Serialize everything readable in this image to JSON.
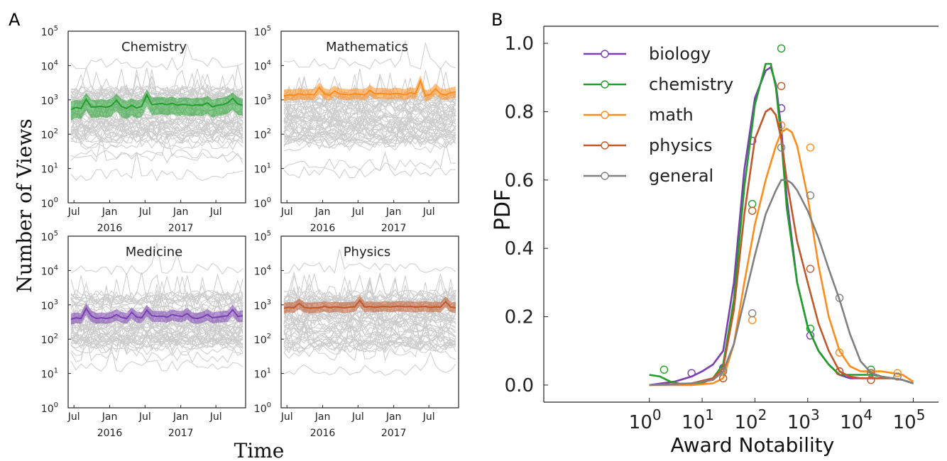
{
  "panel_labels": {
    "a": "A",
    "b": "B"
  },
  "colors": {
    "biology": "#7a3fb0",
    "chemistry": "#1f9e2a",
    "math": "#ff8c1a",
    "physics": "#c0582a",
    "general": "#808080",
    "background_lines": "#cccccc"
  },
  "chart_data": [
    {
      "type": "line",
      "panel": "A",
      "xlabel": "Time",
      "ylabel": "Number of Views",
      "y_scale": "log",
      "ylim": [
        1,
        100000
      ],
      "x_range": [
        "2015-06",
        "2017-12"
      ],
      "y_tick_labels": [
        {
          "base": "10",
          "exp": "0"
        },
        {
          "base": "10",
          "exp": "1"
        },
        {
          "base": "10",
          "exp": "2"
        },
        {
          "base": "10",
          "exp": "3"
        },
        {
          "base": "10",
          "exp": "4"
        },
        {
          "base": "10",
          "exp": "5"
        }
      ],
      "x_tick_labels": [
        {
          "label": "Jul",
          "year": "",
          "date": "2015-07"
        },
        {
          "label": "Jan",
          "year": "2016",
          "date": "2016-01"
        },
        {
          "label": "Jul",
          "year": "",
          "date": "2016-07"
        },
        {
          "label": "Jan",
          "year": "2017",
          "date": "2017-01"
        },
        {
          "label": "Jul",
          "year": "",
          "date": "2017-07"
        }
      ],
      "subplots": [
        {
          "title": "Chemistry",
          "color_key": "chemistry",
          "median": [
            520,
            600,
            560,
            1050,
            620,
            620,
            650,
            600,
            680,
            980,
            640,
            560,
            700,
            580,
            650,
            1400,
            720,
            760,
            780,
            720,
            800,
            700,
            740,
            720,
            680,
            720,
            700,
            820,
            620,
            700,
            720,
            820,
            1100,
            760,
            700
          ],
          "band_low": [
            250,
            300,
            280,
            500,
            300,
            300,
            320,
            300,
            330,
            480,
            310,
            280,
            340,
            290,
            320,
            650,
            350,
            370,
            380,
            350,
            390,
            340,
            360,
            350,
            330,
            350,
            340,
            400,
            300,
            340,
            350,
            400,
            520,
            370,
            340
          ],
          "band_high": [
            900,
            1000,
            950,
            1600,
            1000,
            1000,
            1050,
            980,
            1100,
            1500,
            1050,
            950,
            1100,
            960,
            1050,
            2000,
            1150,
            1200,
            1250,
            1150,
            1250,
            1100,
            1180,
            1150,
            1100,
            1150,
            1120,
            1300,
            1000,
            1120,
            1150,
            1300,
            1650,
            1200,
            1100
          ]
        },
        {
          "title": "Mathematics",
          "color_key": "math",
          "median": [
            1300,
            1400,
            1350,
            1500,
            1400,
            1450,
            1400,
            2300,
            1500,
            1350,
            1800,
            1500,
            1450,
            1400,
            1500,
            1450,
            1400,
            1900,
            1500,
            1550,
            1500,
            1450,
            1550,
            1500,
            1400,
            1600,
            1500,
            3600,
            1300,
            1450,
            2100,
            1500,
            1400,
            1600,
            1700
          ],
          "band_low": [
            900,
            1000,
            950,
            1050,
            980,
            1000,
            980,
            1500,
            1050,
            950,
            1250,
            1050,
            1000,
            980,
            1050,
            1000,
            980,
            1300,
            1050,
            1080,
            1050,
            1000,
            1080,
            1050,
            980,
            1100,
            1050,
            2200,
            900,
            1000,
            1400,
            1050,
            980,
            1100,
            1150
          ],
          "band_high": [
            2000,
            2100,
            2000,
            2200,
            2050,
            2100,
            2050,
            3200,
            2200,
            2000,
            2600,
            2200,
            2100,
            2050,
            2200,
            2100,
            2050,
            2700,
            2200,
            2250,
            2200,
            2100,
            2250,
            2200,
            2050,
            2300,
            2200,
            5200,
            1900,
            2100,
            3000,
            2200,
            2050,
            2300,
            2450
          ]
        },
        {
          "title": "Medicine",
          "color_key": "biology",
          "median": [
            380,
            420,
            400,
            780,
            480,
            400,
            420,
            400,
            430,
            520,
            430,
            400,
            600,
            440,
            420,
            700,
            480,
            460,
            470,
            440,
            520,
            480,
            460,
            560,
            420,
            400,
            440,
            520,
            420,
            440,
            460,
            480,
            720,
            460,
            480
          ],
          "band_low": [
            260,
            290,
            280,
            500,
            320,
            280,
            290,
            280,
            300,
            350,
            300,
            280,
            400,
            300,
            290,
            460,
            320,
            310,
            320,
            300,
            350,
            320,
            310,
            370,
            290,
            280,
            300,
            350,
            290,
            300,
            310,
            320,
            480,
            310,
            320
          ],
          "band_high": [
            560,
            600,
            580,
            1100,
            680,
            580,
            600,
            580,
            620,
            740,
            620,
            580,
            850,
            630,
            600,
            1000,
            680,
            660,
            670,
            630,
            740,
            680,
            660,
            800,
            600,
            580,
            630,
            740,
            600,
            630,
            660,
            680,
            1020,
            660,
            680
          ]
        },
        {
          "title": "Physics",
          "color_key": "physics",
          "median": [
            800,
            850,
            820,
            1100,
            850,
            800,
            830,
            820,
            900,
            820,
            880,
            850,
            820,
            860,
            880,
            1350,
            860,
            900,
            850,
            880,
            900,
            860,
            900,
            920,
            880,
            900,
            860,
            880,
            900,
            840,
            880,
            850,
            1250,
            860,
            830
          ],
          "band_low": [
            560,
            600,
            580,
            760,
            600,
            560,
            580,
            580,
            630,
            580,
            620,
            600,
            580,
            600,
            620,
            900,
            600,
            630,
            600,
            620,
            630,
            600,
            630,
            640,
            620,
            630,
            600,
            620,
            630,
            590,
            620,
            600,
            850,
            600,
            580
          ],
          "band_high": [
            1150,
            1200,
            1180,
            1550,
            1200,
            1150,
            1180,
            1180,
            1280,
            1180,
            1250,
            1200,
            1180,
            1220,
            1250,
            1900,
            1220,
            1280,
            1200,
            1250,
            1280,
            1220,
            1280,
            1300,
            1250,
            1280,
            1220,
            1250,
            1280,
            1200,
            1250,
            1200,
            1750,
            1220,
            1180
          ]
        }
      ]
    },
    {
      "type": "line",
      "panel": "B",
      "xlabel": "Award Notability",
      "ylabel": "PDF",
      "x_scale": "log",
      "xlim": [
        0.01,
        300000
      ],
      "ylim": [
        -0.05,
        1.05
      ],
      "y_ticks": [
        "0.0",
        "0.2",
        "0.4",
        "0.6",
        "0.8",
        "1.0"
      ],
      "x_tick_labels": [
        {
          "base": "10",
          "exp": "0"
        },
        {
          "base": "10",
          "exp": "1"
        },
        {
          "base": "10",
          "exp": "2"
        },
        {
          "base": "10",
          "exp": "3"
        },
        {
          "base": "10",
          "exp": "4"
        },
        {
          "base": "10",
          "exp": "5"
        }
      ],
      "legend_position": "top-left",
      "series": [
        {
          "name": "biology",
          "color_key": "biology",
          "curve_x": [
            1,
            3,
            6.3,
            10,
            16,
            25,
            40,
            63,
            100,
            160,
            200,
            250,
            316,
            400,
            630,
            1000,
            1600,
            2500,
            4000,
            6300,
            10000,
            16000,
            25000,
            40000,
            63000,
            100000
          ],
          "curve_y": [
            0.0,
            0.01,
            0.025,
            0.04,
            0.06,
            0.1,
            0.3,
            0.63,
            0.84,
            0.92,
            0.93,
            0.88,
            0.75,
            0.55,
            0.3,
            0.17,
            0.1,
            0.06,
            0.03,
            0.02,
            0.02,
            0.02,
            0.02,
            0.02,
            0.015,
            0.005
          ],
          "points_x": [
            6.3,
            25,
            89,
            316,
            1120,
            4000,
            15800
          ],
          "points_y": [
            0.035,
            0.05,
            0.715,
            0.81,
            0.145,
            0.04,
            0.035
          ]
        },
        {
          "name": "chemistry",
          "color_key": "chemistry",
          "curve_x": [
            1,
            1.6,
            2.5,
            4,
            6.3,
            10,
            16,
            25,
            40,
            63,
            100,
            160,
            200,
            250,
            316,
            400,
            630,
            1000,
            1600,
            2500,
            4000,
            6300,
            10000,
            16000,
            25000,
            40000,
            63000,
            100000
          ],
          "curve_y": [
            0.03,
            0.025,
            0.01,
            0.003,
            0.0,
            0.005,
            0.02,
            0.06,
            0.25,
            0.58,
            0.82,
            0.94,
            0.94,
            0.87,
            0.72,
            0.52,
            0.3,
            0.17,
            0.1,
            0.06,
            0.03,
            0.03,
            0.03,
            0.03,
            0.025,
            0.02,
            0.015,
            0.005
          ],
          "points_x": [
            1.9,
            25,
            89,
            316,
            1120,
            15800
          ],
          "points_y": [
            0.045,
            0.045,
            0.53,
            0.985,
            0.165,
            0.045
          ]
        },
        {
          "name": "math",
          "color_key": "math",
          "curve_x": [
            1,
            6.3,
            16,
            25,
            40,
            63,
            100,
            160,
            250,
            316,
            400,
            500,
            630,
            1000,
            1600,
            2500,
            4000,
            6300,
            10000,
            16000,
            25000,
            40000,
            63000,
            100000
          ],
          "curve_y": [
            0.0,
            0.0,
            0.005,
            0.02,
            0.12,
            0.3,
            0.47,
            0.6,
            0.7,
            0.74,
            0.75,
            0.74,
            0.7,
            0.55,
            0.35,
            0.2,
            0.1,
            0.055,
            0.04,
            0.04,
            0.04,
            0.035,
            0.03,
            0.01
          ],
          "points_x": [
            25,
            89,
            316,
            1120,
            4000,
            15800,
            50000
          ],
          "points_y": [
            0.02,
            0.19,
            0.76,
            0.695,
            0.095,
            0.035,
            0.035
          ]
        },
        {
          "name": "physics",
          "color_key": "physics",
          "curve_x": [
            1,
            6.3,
            16,
            25,
            40,
            63,
            100,
            160,
            200,
            250,
            316,
            400,
            630,
            1000,
            1600,
            2500,
            4000,
            6300,
            10000,
            16000,
            25000,
            40000,
            63000,
            100000
          ],
          "curve_y": [
            0.0,
            0.005,
            0.02,
            0.05,
            0.22,
            0.5,
            0.72,
            0.8,
            0.81,
            0.79,
            0.72,
            0.6,
            0.42,
            0.3,
            0.18,
            0.1,
            0.04,
            0.025,
            0.02,
            0.02,
            0.02,
            0.02,
            0.015,
            0.005
          ],
          "points_x": [
            25,
            89,
            316,
            1120,
            4000,
            15800
          ],
          "points_y": [
            0.02,
            0.51,
            0.875,
            0.34,
            0.04,
            0.015
          ]
        },
        {
          "name": "general",
          "color_key": "general",
          "curve_x": [
            1,
            6.3,
            16,
            25,
            40,
            63,
            100,
            160,
            250,
            316,
            400,
            500,
            630,
            1000,
            1600,
            2500,
            4000,
            6300,
            10000,
            16000,
            25000,
            40000,
            63000,
            100000
          ],
          "curve_y": [
            0.0,
            0.005,
            0.015,
            0.04,
            0.12,
            0.25,
            0.38,
            0.5,
            0.57,
            0.6,
            0.6,
            0.59,
            0.57,
            0.51,
            0.43,
            0.34,
            0.25,
            0.15,
            0.07,
            0.035,
            0.025,
            0.02,
            0.015,
            0.005
          ],
          "points_x": [
            25,
            89,
            316,
            1120,
            4000,
            15800,
            50000
          ],
          "points_y": [
            0.04,
            0.21,
            0.695,
            0.555,
            0.255,
            0.035,
            0.025
          ]
        }
      ]
    }
  ]
}
